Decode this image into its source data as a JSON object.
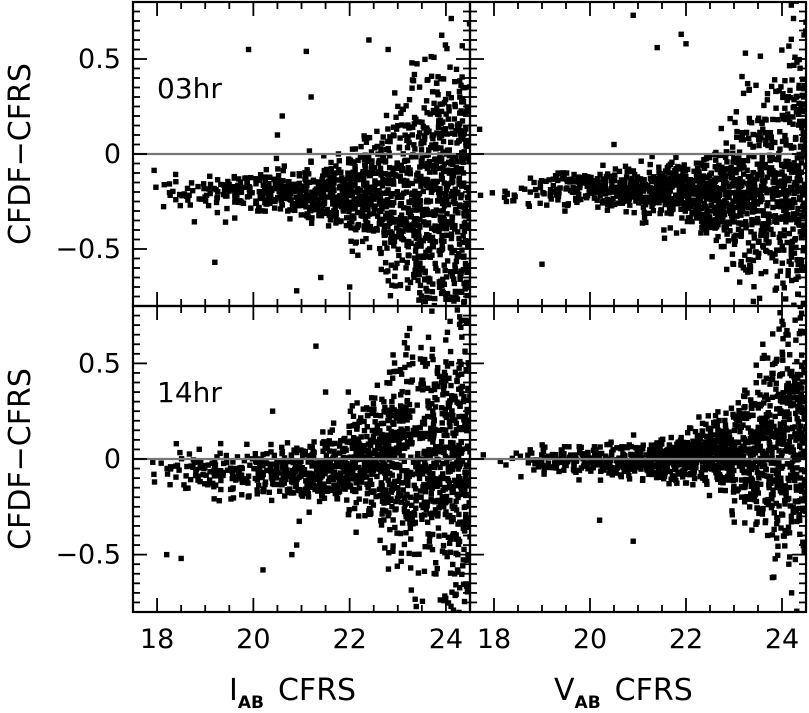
{
  "figure": {
    "ylabel_top": "CFDF−CFRS",
    "ylabel_bottom": "CFDF−CFRS",
    "xlabel_left": {
      "main": "I",
      "sub": "AB",
      "suffix": "CFRS"
    },
    "xlabel_right": {
      "main": "V",
      "sub": "AB",
      "suffix": "CFRS"
    }
  },
  "chart_data": [
    {
      "type": "scatter",
      "panel": "top-left",
      "label": "03hr",
      "xlabel": "I_AB CFRS",
      "ylabel": "CFDF−CFRS",
      "xlim": [
        17.5,
        24.5
      ],
      "ylim": [
        -0.8,
        0.8
      ],
      "xticks": [
        18,
        20,
        22,
        24
      ],
      "yticks": [
        -0.5,
        0,
        0.5
      ],
      "ytick_labels": [
        "−0.5",
        "0",
        "0.5"
      ],
      "reference_line": 0,
      "series": [
        {
          "trend": [
            [
              17.5,
              -0.2
            ],
            [
              20,
              -0.2
            ],
            [
              21.5,
              -0.22
            ],
            [
              22.5,
              -0.23
            ],
            [
              23.5,
              -0.25
            ],
            [
              24.4,
              -0.28
            ]
          ],
          "spread": [
            [
              17.5,
              0.04
            ],
            [
              20,
              0.05
            ],
            [
              21.5,
              0.08
            ],
            [
              22.5,
              0.15
            ],
            [
              23.5,
              0.32
            ],
            [
              24.4,
              0.45
            ]
          ],
          "n": 1500
        }
      ],
      "outliers": [
        [
          19.9,
          0.55
        ],
        [
          21.1,
          0.54
        ],
        [
          22.4,
          0.6
        ],
        [
          22.8,
          0.55
        ],
        [
          20.6,
          0.2
        ],
        [
          21.2,
          0.3
        ],
        [
          19.2,
          -0.57
        ],
        [
          20.9,
          -0.72
        ],
        [
          21.4,
          -0.65
        ],
        [
          22.0,
          -0.7
        ],
        [
          20.5,
          0.1
        ]
      ]
    },
    {
      "type": "scatter",
      "panel": "top-right",
      "xlabel": "V_AB CFRS",
      "ylabel": "CFDF−CFRS",
      "xlim": [
        17.5,
        24.5
      ],
      "ylim": [
        -0.8,
        0.8
      ],
      "xticks": [
        18,
        20,
        22,
        24
      ],
      "yticks": [
        -0.5,
        0,
        0.5
      ],
      "reference_line": 0,
      "series": [
        {
          "trend": [
            [
              17.5,
              -0.2
            ],
            [
              20,
              -0.18
            ],
            [
              21.5,
              -0.2
            ],
            [
              22.5,
              -0.22
            ],
            [
              23.5,
              -0.22
            ],
            [
              24.4,
              -0.15
            ]
          ],
          "spread": [
            [
              17.5,
              0.04
            ],
            [
              20,
              0.05
            ],
            [
              21.5,
              0.07
            ],
            [
              22.5,
              0.1
            ],
            [
              23.5,
              0.25
            ],
            [
              24.4,
              0.4
            ]
          ],
          "n": 1400
        }
      ],
      "outliers": [
        [
          17.7,
          0.13
        ],
        [
          19.0,
          -0.58
        ],
        [
          20.9,
          0.73
        ],
        [
          21.4,
          0.56
        ],
        [
          21.9,
          0.63
        ],
        [
          22.0,
          0.58
        ],
        [
          21.1,
          -0.25
        ],
        [
          20.5,
          0.05
        ]
      ]
    },
    {
      "type": "scatter",
      "panel": "bottom-left",
      "label": "14hr",
      "xlabel": "I_AB CFRS",
      "ylabel": "CFDF−CFRS",
      "xlim": [
        17.5,
        24.5
      ],
      "ylim": [
        -0.8,
        0.8
      ],
      "xticks": [
        18,
        20,
        22,
        24
      ],
      "xtick_labels": [
        "18",
        "20",
        "22",
        "24"
      ],
      "yticks": [
        -0.5,
        0,
        0.5
      ],
      "ytick_labels": [
        "−0.5",
        "0",
        "0.5"
      ],
      "reference_line": 0,
      "series": [
        {
          "trend": [
            [
              17.5,
              -0.05
            ],
            [
              20,
              -0.08
            ],
            [
              21.5,
              -0.06
            ],
            [
              22.5,
              -0.02
            ],
            [
              23.5,
              0.0
            ],
            [
              24.4,
              -0.05
            ]
          ],
          "spread": [
            [
              17.5,
              0.05
            ],
            [
              20,
              0.07
            ],
            [
              21.5,
              0.09
            ],
            [
              22.5,
              0.15
            ],
            [
              23.5,
              0.32
            ],
            [
              24.4,
              0.45
            ]
          ],
          "n": 1500
        }
      ],
      "outliers": [
        [
          18.2,
          -0.5
        ],
        [
          18.5,
          -0.52
        ],
        [
          20.2,
          -0.58
        ],
        [
          20.4,
          0.25
        ],
        [
          21.3,
          0.59
        ],
        [
          20.9,
          -0.45
        ],
        [
          21.5,
          0.35
        ],
        [
          18.4,
          0.08
        ],
        [
          20.8,
          -0.5
        ]
      ]
    },
    {
      "type": "scatter",
      "panel": "bottom-right",
      "xlabel": "V_AB CFRS",
      "ylabel": "CFDF−CFRS",
      "xlim": [
        17.5,
        24.5
      ],
      "ylim": [
        -0.8,
        0.8
      ],
      "xticks": [
        18,
        20,
        22,
        24
      ],
      "xtick_labels": [
        "18",
        "20",
        "22",
        "24"
      ],
      "yticks": [
        -0.5,
        0,
        0.5
      ],
      "reference_line": 0,
      "series": [
        {
          "trend": [
            [
              17.5,
              0.0
            ],
            [
              20,
              -0.01
            ],
            [
              21.5,
              0.0
            ],
            [
              22.5,
              0.02
            ],
            [
              23.5,
              0.04
            ],
            [
              24.4,
              0.1
            ]
          ],
          "spread": [
            [
              17.5,
              0.03
            ],
            [
              20,
              0.04
            ],
            [
              21.5,
              0.05
            ],
            [
              22.5,
              0.08
            ],
            [
              23.5,
              0.18
            ],
            [
              24.4,
              0.32
            ]
          ],
          "n": 1400
        }
      ],
      "outliers": [
        [
          20.2,
          -0.32
        ],
        [
          20.9,
          -0.43
        ],
        [
          23.6,
          0.6
        ],
        [
          23.8,
          -0.62
        ],
        [
          24.2,
          -0.7
        ],
        [
          24.0,
          0.72
        ],
        [
          23.7,
          -0.4
        ]
      ]
    }
  ]
}
